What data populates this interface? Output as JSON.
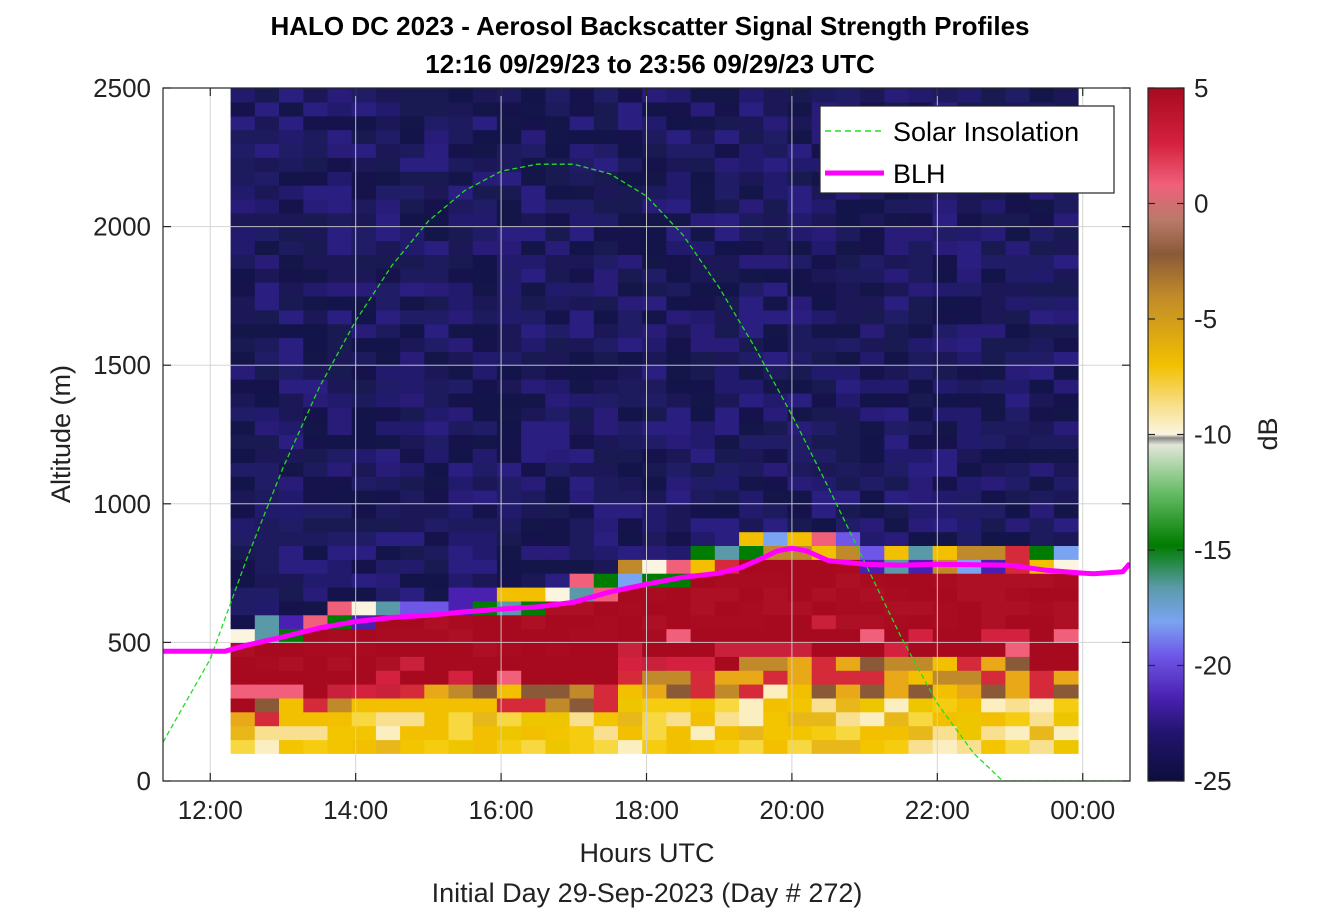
{
  "chart_data": {
    "type": "heatmap",
    "title": "HALO DC 2023 - Aerosol Backscatter Signal Strength Profiles",
    "subtitle": "12:16 09/29/23 to 23:56 09/29/23  UTC",
    "xlabel": "Hours UTC",
    "ylabel": "Altitude (m)",
    "footer": "Initial Day 29-Sep-2023 (Day # 272)",
    "xlim": [
      11.35,
      24.65
    ],
    "ylim": [
      0,
      2500
    ],
    "x_ticks": [
      12,
      14,
      16,
      18,
      20,
      22,
      24
    ],
    "x_tick_labels": [
      "12:00",
      "14:00",
      "16:00",
      "18:00",
      "20:00",
      "22:00",
      "00:00"
    ],
    "y_ticks": [
      0,
      500,
      1000,
      1500,
      2000,
      2500
    ],
    "y_tick_labels": [
      "0",
      "500",
      "1000",
      "1500",
      "2000",
      "2500"
    ],
    "grid": true,
    "legend_position": "top-right",
    "heatmap": {
      "x_start": 12.28,
      "x_end": 23.94,
      "y_start": 100,
      "y_end": 2500,
      "x_step": 0.333,
      "y_step": 50
    },
    "colorbar": {
      "label": "dB",
      "range": [
        -25,
        5
      ],
      "ticks": [
        5,
        0,
        -5,
        -10,
        -15,
        -20,
        -25
      ],
      "tick_labels": [
        "5",
        "0",
        "-5",
        "-10",
        "-15",
        "-20",
        "-25"
      ]
    },
    "series": [
      {
        "name": "Solar Insolation",
        "style": "dashed",
        "color": "#22dd22",
        "x": [
          11.35,
          12.0,
          12.5,
          13.0,
          13.5,
          14.0,
          14.5,
          15.0,
          15.5,
          16.0,
          16.5,
          17.0,
          17.5,
          18.0,
          18.5,
          19.0,
          19.5,
          20.0,
          20.5,
          21.0,
          21.5,
          22.0,
          22.5,
          22.9,
          23.2,
          24.0,
          24.65
        ],
        "y": [
          140,
          440,
          800,
          1130,
          1420,
          1660,
          1860,
          2020,
          2130,
          2200,
          2225,
          2225,
          2190,
          2110,
          1970,
          1780,
          1560,
          1320,
          1060,
          790,
          520,
          280,
          100,
          0,
          0,
          0,
          0
        ]
      },
      {
        "name": "BLH",
        "style": "solid",
        "color": "#ff00ff",
        "x": [
          11.35,
          12.2,
          12.5,
          13.0,
          13.5,
          14.0,
          14.5,
          15.0,
          15.5,
          16.0,
          16.5,
          17.0,
          17.5,
          18.0,
          18.5,
          19.0,
          19.3,
          19.6,
          19.8,
          20.0,
          20.2,
          20.5,
          21.0,
          21.5,
          22.0,
          22.5,
          23.0,
          23.5,
          24.0,
          24.15,
          24.55,
          24.65
        ],
        "y": [
          468,
          468,
          490,
          520,
          552,
          575,
          590,
          598,
          610,
          620,
          628,
          645,
          682,
          710,
          735,
          750,
          770,
          805,
          830,
          840,
          830,
          795,
          782,
          778,
          782,
          780,
          778,
          760,
          750,
          748,
          755,
          785
        ]
      }
    ]
  }
}
